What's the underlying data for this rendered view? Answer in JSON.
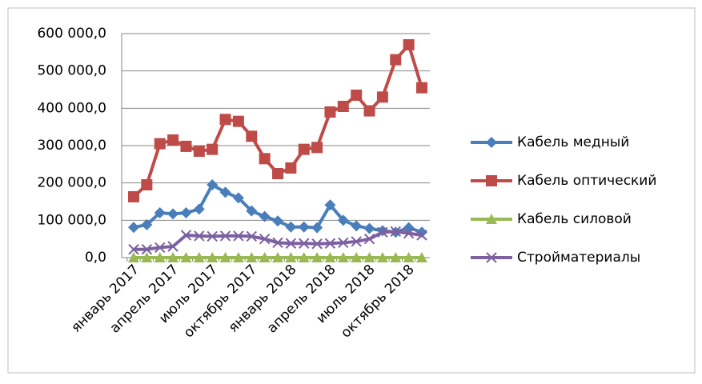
{
  "chart_data": {
    "type": "line",
    "categories": [
      "январь 2017",
      null,
      null,
      "апрель 2017",
      null,
      null,
      "июль 2017",
      null,
      null,
      "октябрь 2017",
      null,
      null,
      "январь 2018",
      null,
      null,
      "апрель 2018",
      null,
      null,
      "июль 2018",
      null,
      null,
      "октябрь 2018",
      null
    ],
    "series": [
      {
        "name": "Кабель медный",
        "color": "#4a7ebb",
        "marker": "diamond",
        "values": [
          81000,
          88000,
          120000,
          117000,
          120000,
          130000,
          195000,
          175000,
          160000,
          125000,
          110000,
          98000,
          82000,
          82000,
          80000,
          141000,
          100000,
          85000,
          78000,
          72000,
          68000,
          80000,
          68000
        ]
      },
      {
        "name": "Кабель оптический",
        "color": "#be4b48",
        "marker": "square",
        "values": [
          163000,
          195000,
          305000,
          315000,
          298000,
          285000,
          290000,
          370000,
          365000,
          325000,
          265000,
          225000,
          240000,
          290000,
          295000,
          390000,
          405000,
          435000,
          393000,
          430000,
          530000,
          570000,
          455000
        ]
      },
      {
        "name": "Кабель силовой",
        "color": "#98b954",
        "marker": "triangle",
        "values": [
          0,
          0,
          0,
          0,
          0,
          0,
          0,
          0,
          0,
          0,
          0,
          0,
          0,
          0,
          0,
          0,
          0,
          0,
          0,
          0,
          0,
          0,
          0
        ]
      },
      {
        "name": "Стройматериалы",
        "color": "#7d60a0",
        "marker": "x",
        "values": [
          22000,
          22000,
          27000,
          30000,
          60000,
          58000,
          57000,
          58000,
          58000,
          57000,
          50000,
          40000,
          38000,
          38000,
          37000,
          38000,
          40000,
          43000,
          50000,
          68000,
          70000,
          65000,
          60000
        ]
      }
    ],
    "ylim": [
      0,
      600000
    ],
    "yticks": [
      {
        "value": 0,
        "label": "0,0"
      },
      {
        "value": 100000,
        "label": "100 000,0"
      },
      {
        "value": 200000,
        "label": "200 000,0"
      },
      {
        "value": 300000,
        "label": "300 000,0"
      },
      {
        "value": 400000,
        "label": "400 000,0"
      },
      {
        "value": 500000,
        "label": "500 000,0"
      },
      {
        "value": 600000,
        "label": "600 000,0"
      }
    ],
    "grid": true,
    "legend": "right"
  }
}
